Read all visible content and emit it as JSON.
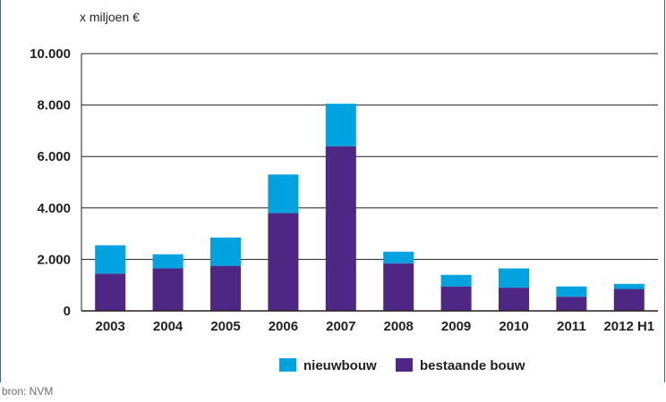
{
  "chart_data": {
    "type": "bar",
    "stacked": true,
    "unit_label": "x miljoen €",
    "categories": [
      "2003",
      "2004",
      "2005",
      "2006",
      "2007",
      "2008",
      "2009",
      "2010",
      "2011",
      "2012 H1"
    ],
    "series": [
      {
        "name": "bestaande bouw",
        "color": "#4e2683",
        "values": [
          1450,
          1650,
          1750,
          3800,
          6400,
          1850,
          950,
          900,
          550,
          850
        ]
      },
      {
        "name": "nieuwbouw",
        "color": "#00a3e0",
        "values": [
          1100,
          550,
          1100,
          1500,
          1650,
          450,
          450,
          750,
          400,
          200
        ]
      }
    ],
    "yticks": [
      0,
      2000,
      4000,
      6000,
      8000,
      10000
    ],
    "ytick_labels": [
      "0",
      "2.000",
      "4.000",
      "6.000",
      "8.000",
      "10.000"
    ],
    "ylim": [
      0,
      10000
    ],
    "grid": true,
    "legend": {
      "placement": "bottom-center",
      "order": [
        "nieuwbouw",
        "bestaande bouw"
      ]
    }
  },
  "source_note": "bron: NVM"
}
